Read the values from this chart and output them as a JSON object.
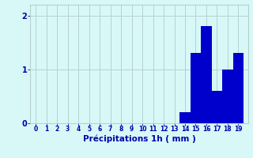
{
  "categories": [
    0,
    1,
    2,
    3,
    4,
    5,
    6,
    7,
    8,
    9,
    10,
    11,
    12,
    13,
    14,
    15,
    16,
    17,
    18,
    19
  ],
  "values": [
    0,
    0,
    0,
    0,
    0,
    0,
    0,
    0,
    0,
    0,
    0,
    0,
    0,
    0,
    0.2,
    1.3,
    1.8,
    0.6,
    1.0,
    1.3
  ],
  "bar_color": "#0000cc",
  "background_color": "#d8f8f8",
  "grid_color": "#b8d0d0",
  "axis_color": "#0000aa",
  "xlabel": "Précipitations 1h ( mm )",
  "ylim": [
    0,
    2.2
  ],
  "xlim": [
    -0.5,
    19.9
  ],
  "yticks": [
    0,
    1,
    2
  ],
  "xticks": [
    0,
    1,
    2,
    3,
    4,
    5,
    6,
    7,
    8,
    9,
    10,
    11,
    12,
    13,
    14,
    15,
    16,
    17,
    18,
    19
  ],
  "xlabel_fontsize": 7.5,
  "xtick_fontsize": 5.5,
  "ytick_fontsize": 7.0
}
